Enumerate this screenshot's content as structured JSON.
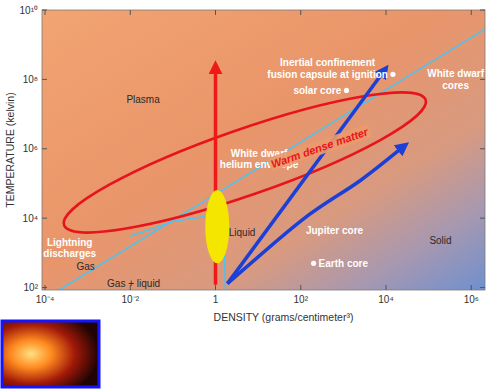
{
  "chart_data": {
    "type": "phase_diagram",
    "x_label": "DENSITY (grams/centimeter³)",
    "y_label": "TEMPERATURE (kelvin)",
    "log": true,
    "grid": false,
    "xlim": [
      8.5e-05,
      2100000
    ],
    "ylim": [
      85,
      10000000000
    ],
    "xticks": [
      {
        "value": 0.0001,
        "label": "10⁻⁴"
      },
      {
        "value": 0.01,
        "label": "10⁻²"
      },
      1,
      {
        "value": 100,
        "label": "10²"
      },
      {
        "value": 10000,
        "label": "10⁴"
      },
      {
        "value": 1000000,
        "label": "10⁶"
      }
    ],
    "yticks": [
      {
        "value": 100,
        "label": "10²"
      },
      {
        "value": 10000,
        "label": "10⁴"
      },
      {
        "value": 1000000,
        "label": "10⁶"
      },
      {
        "value": 100000000,
        "label": "10⁸"
      },
      {
        "value": 10000000000,
        "label": "10¹⁰"
      }
    ],
    "lines": [
      {
        "x": [
          0.0001,
          2100000
        ],
        "y": [
          48,
          2800000000
        ],
        "color": "#4ec3ee"
      },
      {
        "x": [
          0.01,
          0.1,
          0.5,
          1.3,
          1.6,
          1.7
        ],
        "y": [
          3000,
          8000,
          11000,
          9000,
          3000,
          85
        ],
        "color": "#4ec3ee"
      }
    ],
    "ellipse": {
      "label": "Warm dense matter",
      "from": [
        0.00028,
        6300
      ],
      "to": [
        85000,
        26000000
      ],
      "label_x": 275,
      "label_y": 1070000,
      "color": "#e8141c"
    },
    "arrows": [
      {
        "x": [
          1,
          1
        ],
        "y": [
          120,
          270000000
        ],
        "color": "#f01818"
      },
      {
        "x": [
          1.9,
          10000
        ],
        "y": [
          130,
          210000000
        ],
        "color": "#1c3fd6"
      },
      {
        "x": [
          1.9,
          105,
          2600,
          29000
        ],
        "y": [
          130,
          8700,
          126000,
          1300000
        ],
        "color": "#1c3fd6"
      }
    ],
    "highlight": {
      "x": 1.1,
      "y": [
        500,
        65000
      ],
      "color": "#f5e600"
    },
    "points": [
      {
        "label": [
          "Inertial confinement",
          "fusion capsule at ignition"
        ],
        "x": 14500,
        "y": 140000000,
        "color": "#ffffff"
      },
      {
        "label": [
          "solar core"
        ],
        "x": 1180,
        "y": 48000000,
        "color": "#ffffff"
      },
      {
        "label": [
          "Earth core"
        ],
        "x": 200,
        "y": 500,
        "color": "#ffffff"
      }
    ],
    "annotations": [
      {
        "text": [
          "Plasma"
        ],
        "x": 0.02,
        "y": 26000000,
        "color": "#2a2a2a"
      },
      {
        "text": [
          "White dwarf",
          "cores"
        ],
        "x": 430000,
        "y": 100000000,
        "color": "#ffffff"
      },
      {
        "text": [
          "White dwarf",
          "helium envelope"
        ],
        "x": 10.5,
        "y": 510000,
        "color": "#ffffff"
      },
      {
        "text": [
          "Lightning",
          "discharges"
        ],
        "x": 0.00038,
        "y": 1400,
        "color": "#ffffff"
      },
      {
        "text": [
          "Gas"
        ],
        "x": 0.0009,
        "y": 410,
        "color": "#2a2a2a"
      },
      {
        "text": [
          "Gas + liquid"
        ],
        "x": 0.012,
        "y": 130,
        "color": "#2a2a2a"
      },
      {
        "text": [
          "Liquid"
        ],
        "x": 4.2,
        "y": 3900,
        "color": "#2a2a2a"
      },
      {
        "text": [
          "Jupiter core"
        ],
        "x": 620,
        "y": 4500,
        "color": "#ffffff"
      },
      {
        "text": [
          "Solid"
        ],
        "x": 190000,
        "y": 2300,
        "color": "#2a2a2a"
      }
    ]
  }
}
